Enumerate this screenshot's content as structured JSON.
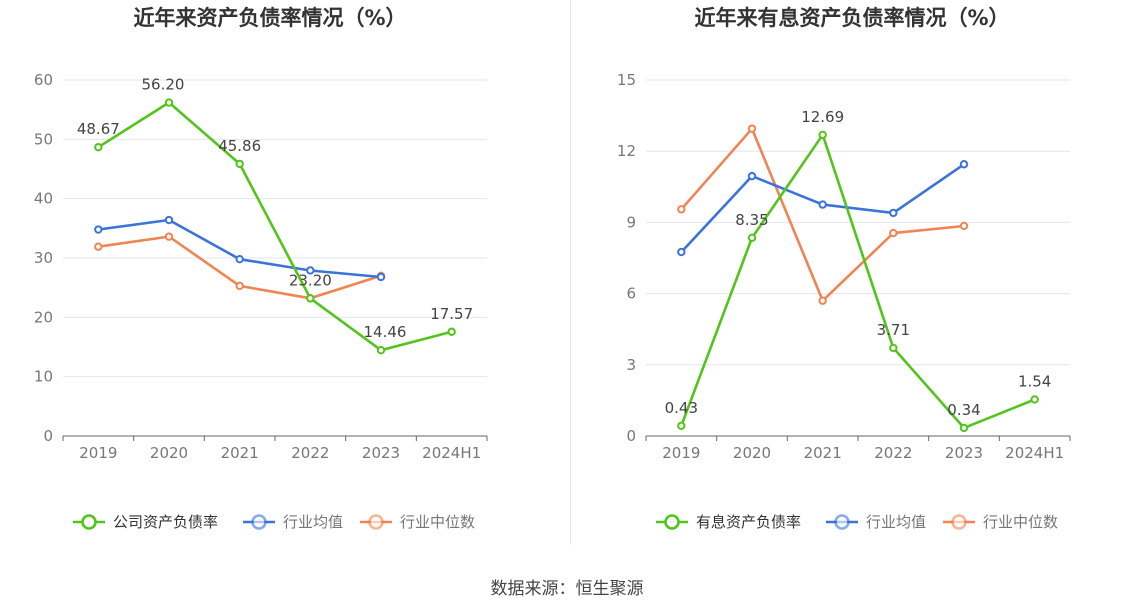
{
  "source_text": "数据来源：恒生聚源",
  "colors": {
    "company": "#52c41a",
    "avg": "#3b73db",
    "median": "#f08452"
  },
  "chart_data": [
    {
      "type": "line",
      "title": "近年来资产负债率情况（%）",
      "categories": [
        "2019",
        "2020",
        "2021",
        "2022",
        "2023",
        "2024H1"
      ],
      "ylim": [
        0,
        60
      ],
      "yticks": [
        0,
        10,
        20,
        30,
        40,
        50,
        60
      ],
      "grid": true,
      "legend_position": "bottom",
      "series": [
        {
          "name": "公司资产负债率",
          "color": "#52c41a",
          "values": [
            48.67,
            56.2,
            45.86,
            23.2,
            14.46,
            17.57
          ],
          "labels": [
            "48.67",
            "56.20",
            "45.86",
            "23.20",
            "14.46",
            "17.57"
          ]
        },
        {
          "name": "行业均值",
          "color": "#3b73db",
          "values": [
            34.8,
            36.4,
            29.8,
            27.9,
            26.8,
            null
          ]
        },
        {
          "name": "行业中位数",
          "color": "#f08452",
          "values": [
            31.9,
            33.6,
            25.3,
            23.2,
            27.0,
            null
          ]
        }
      ]
    },
    {
      "type": "line",
      "title": "近年来有息资产负债率情况（%）",
      "categories": [
        "2019",
        "2020",
        "2021",
        "2022",
        "2023",
        "2024H1"
      ],
      "ylim": [
        0,
        15
      ],
      "yticks": [
        0,
        3,
        6,
        9,
        12,
        15
      ],
      "grid": true,
      "legend_position": "bottom",
      "series": [
        {
          "name": "有息资产负债率",
          "color": "#52c41a",
          "values": [
            0.43,
            8.35,
            12.69,
            3.71,
            0.34,
            1.54
          ],
          "labels": [
            "0.43",
            "8.35",
            "12.69",
            "3.71",
            "0.34",
            "1.54"
          ]
        },
        {
          "name": "行业均值",
          "color": "#3b73db",
          "values": [
            7.75,
            10.95,
            9.75,
            9.4,
            11.45,
            null
          ]
        },
        {
          "name": "行业中位数",
          "color": "#f08452",
          "values": [
            9.55,
            12.95,
            5.7,
            8.55,
            8.85,
            null
          ]
        }
      ]
    }
  ]
}
